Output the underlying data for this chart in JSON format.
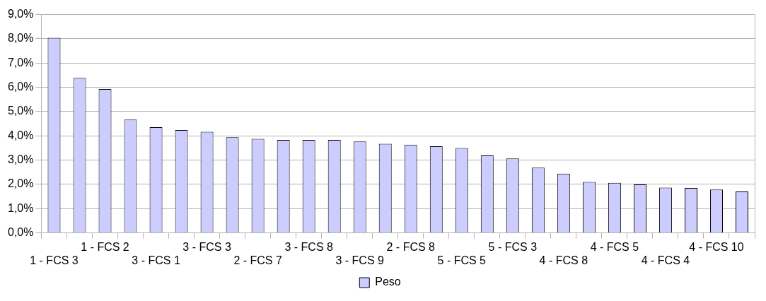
{
  "chart_data": {
    "type": "bar",
    "categories": [
      "1 - FCS 3",
      null,
      "1 - FCS 2",
      null,
      "3 - FCS 1",
      null,
      "3 - FCS 3",
      null,
      "2 - FCS 7",
      null,
      "3 - FCS 8",
      null,
      "3 - FCS 9",
      null,
      "2 - FCS 8",
      null,
      "5 - FCS 5",
      null,
      "5 - FCS 3",
      null,
      "4 - FCS 8",
      null,
      "4 - FCS 5",
      null,
      "4 - FCS 4",
      null,
      "4 - FCS 10",
      null
    ],
    "series": [
      {
        "name": "Peso",
        "color": "#ccccff",
        "values": [
          8.04,
          6.39,
          5.93,
          4.67,
          4.36,
          4.24,
          4.17,
          3.94,
          3.88,
          3.83,
          3.83,
          3.83,
          3.77,
          3.67,
          3.64,
          3.57,
          3.5,
          3.19,
          3.07,
          2.69,
          2.44,
          2.1,
          2.06,
          2.0,
          1.87,
          1.85,
          1.79,
          1.71
        ]
      }
    ],
    "ylim": [
      0,
      9
    ],
    "yticks": [
      {
        "value": 0,
        "label": "0,0%"
      },
      {
        "value": 1,
        "label": "1,0%"
      },
      {
        "value": 2,
        "label": "2,0%"
      },
      {
        "value": 3,
        "label": "3,0%"
      },
      {
        "value": 4,
        "label": "4,0%"
      },
      {
        "value": 5,
        "label": "5,0%"
      },
      {
        "value": 6,
        "label": "6,0%"
      },
      {
        "value": 7,
        "label": "7,0%"
      },
      {
        "value": 8,
        "label": "8,0%"
      },
      {
        "value": 9,
        "label": "9,0%"
      }
    ],
    "grid": "y",
    "legend": "bottom"
  }
}
